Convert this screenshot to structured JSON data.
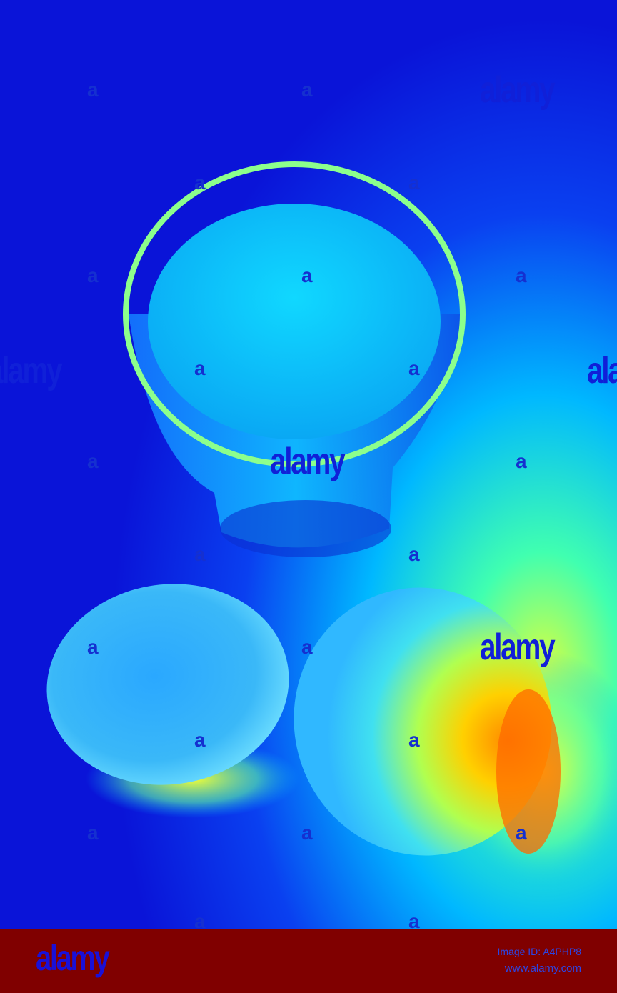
{
  "photo": {
    "subject": "glass of water and two fruits, false-color",
    "colors": {
      "background_deep": "#0a1ee6",
      "background_glow": "#00e8f0",
      "warm_glow": "#ffb000",
      "hot": "#ff6a00",
      "glass_rim": "#8cff8c"
    }
  },
  "watermark": {
    "big": "alamy",
    "small": "a"
  },
  "footer": {
    "logo": "alamy",
    "image_id": "Image ID: A4PHP8",
    "url": "www.alamy.com",
    "background": "#800000"
  }
}
